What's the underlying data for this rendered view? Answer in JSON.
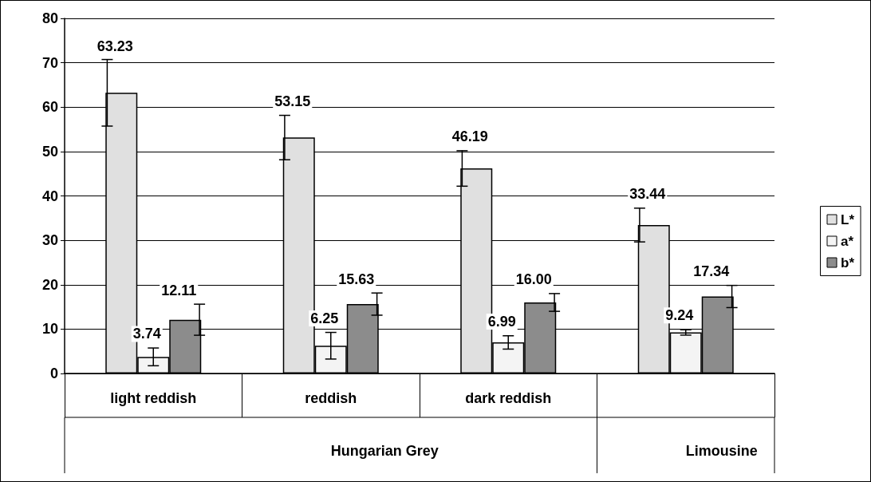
{
  "chart_data": {
    "type": "bar",
    "categories": [
      "light reddish",
      "reddish",
      "dark reddish",
      null
    ],
    "series": [
      {
        "name": "L*",
        "color": "#e0e0e0",
        "values": [
          63.23,
          53.15,
          46.19,
          33.44
        ],
        "errors": [
          7.5,
          5,
          4,
          3.8
        ],
        "value_labels": [
          "63.23",
          "53.15",
          "46.19",
          "33.44"
        ]
      },
      {
        "name": "a*",
        "color": "#f4f4f4",
        "values": [
          3.74,
          6.25,
          6.99,
          9.24
        ],
        "errors": [
          2,
          3,
          1.5,
          0.6
        ],
        "value_labels": [
          "3.74",
          "6.25",
          "6.99",
          "9.24"
        ]
      },
      {
        "name": "b*",
        "color": "#8c8c8c",
        "values": [
          12.11,
          15.63,
          16.0,
          17.34
        ],
        "errors": [
          3.5,
          2.5,
          2,
          2.5
        ],
        "value_labels": [
          "12.11",
          "15.63",
          "16.00",
          "17.34"
        ]
      }
    ],
    "ylim": [
      0,
      80
    ],
    "yticks": [
      0,
      10,
      20,
      30,
      40,
      50,
      60,
      70,
      80
    ],
    "grid": "y",
    "legend": "right",
    "annotations": [
      "Hungarian Grey",
      "Limousine"
    ]
  }
}
